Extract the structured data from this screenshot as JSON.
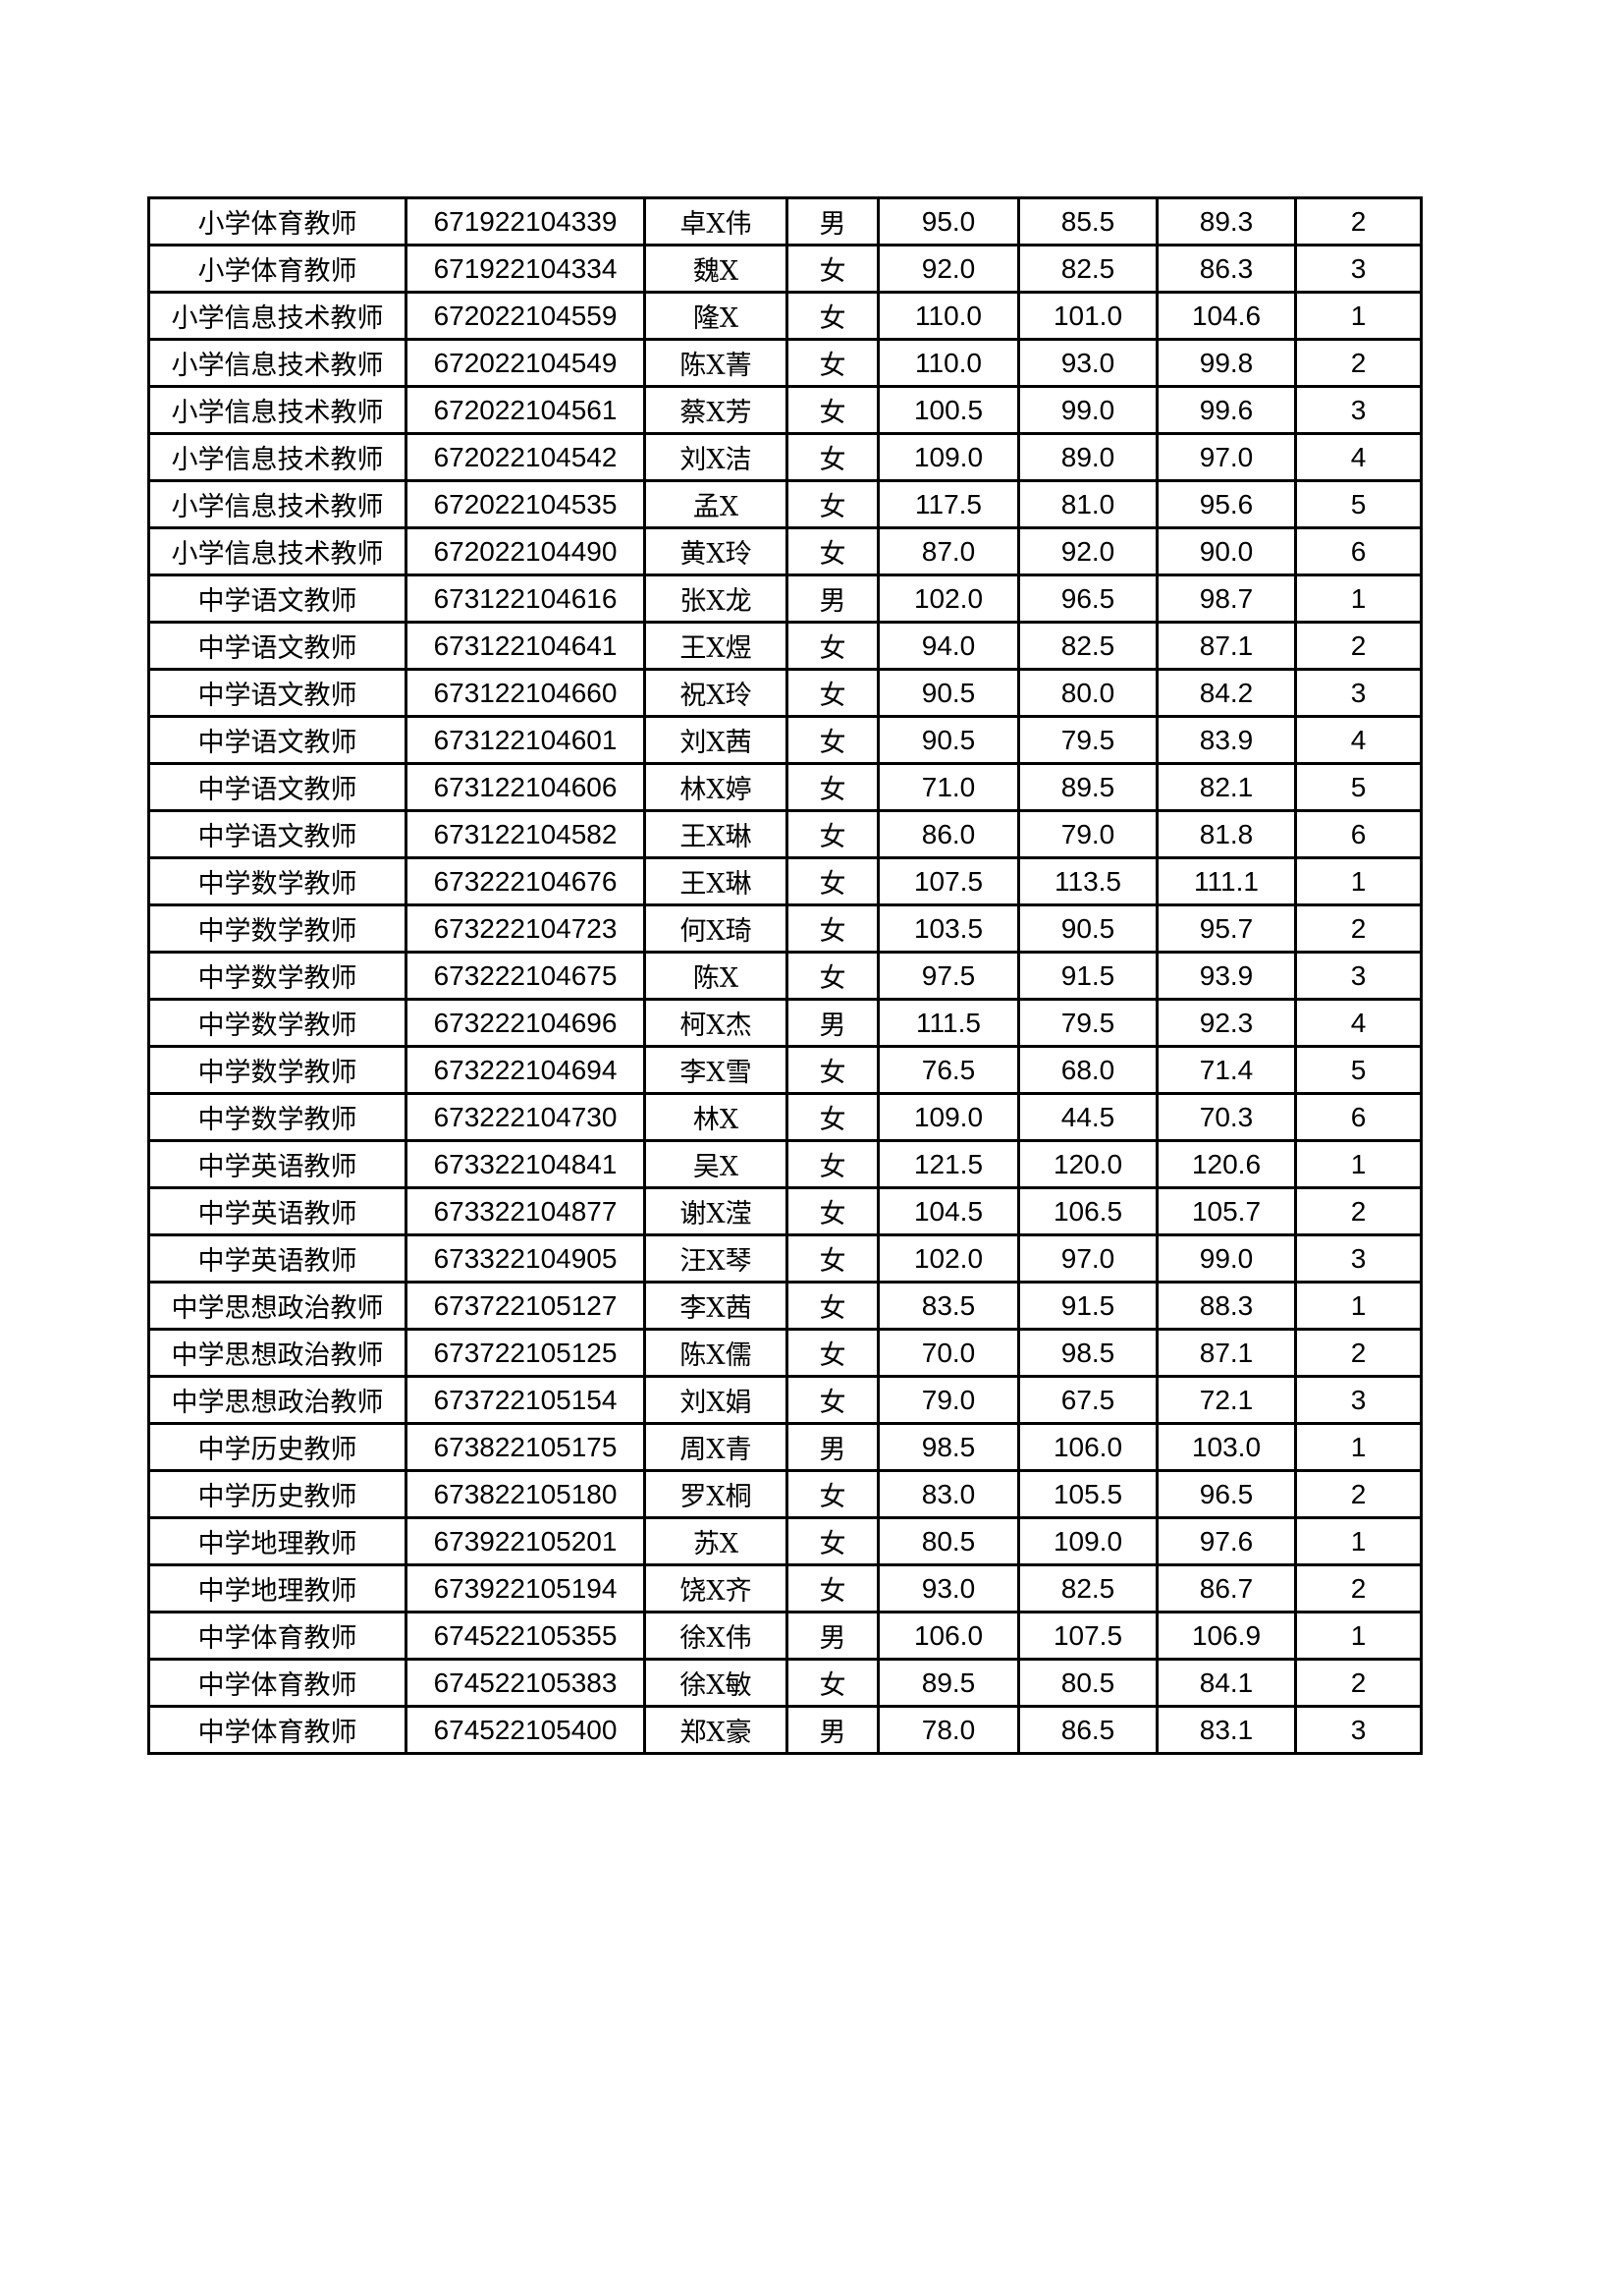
{
  "rows": [
    [
      "小学体育教师",
      "671922104339",
      "卓X伟",
      "男",
      "95.0",
      "85.5",
      "89.3",
      "2"
    ],
    [
      "小学体育教师",
      "671922104334",
      "魏X",
      "女",
      "92.0",
      "82.5",
      "86.3",
      "3"
    ],
    [
      "小学信息技术教师",
      "672022104559",
      "隆X",
      "女",
      "110.0",
      "101.0",
      "104.6",
      "1"
    ],
    [
      "小学信息技术教师",
      "672022104549",
      "陈X菁",
      "女",
      "110.0",
      "93.0",
      "99.8",
      "2"
    ],
    [
      "小学信息技术教师",
      "672022104561",
      "蔡X芳",
      "女",
      "100.5",
      "99.0",
      "99.6",
      "3"
    ],
    [
      "小学信息技术教师",
      "672022104542",
      "刘X洁",
      "女",
      "109.0",
      "89.0",
      "97.0",
      "4"
    ],
    [
      "小学信息技术教师",
      "672022104535",
      "孟X",
      "女",
      "117.5",
      "81.0",
      "95.6",
      "5"
    ],
    [
      "小学信息技术教师",
      "672022104490",
      "黄X玲",
      "女",
      "87.0",
      "92.0",
      "90.0",
      "6"
    ],
    [
      "中学语文教师",
      "673122104616",
      "张X龙",
      "男",
      "102.0",
      "96.5",
      "98.7",
      "1"
    ],
    [
      "中学语文教师",
      "673122104641",
      "王X煜",
      "女",
      "94.0",
      "82.5",
      "87.1",
      "2"
    ],
    [
      "中学语文教师",
      "673122104660",
      "祝X玲",
      "女",
      "90.5",
      "80.0",
      "84.2",
      "3"
    ],
    [
      "中学语文教师",
      "673122104601",
      "刘X茜",
      "女",
      "90.5",
      "79.5",
      "83.9",
      "4"
    ],
    [
      "中学语文教师",
      "673122104606",
      "林X婷",
      "女",
      "71.0",
      "89.5",
      "82.1",
      "5"
    ],
    [
      "中学语文教师",
      "673122104582",
      "王X琳",
      "女",
      "86.0",
      "79.0",
      "81.8",
      "6"
    ],
    [
      "中学数学教师",
      "673222104676",
      "王X琳",
      "女",
      "107.5",
      "113.5",
      "111.1",
      "1"
    ],
    [
      "中学数学教师",
      "673222104723",
      "何X琦",
      "女",
      "103.5",
      "90.5",
      "95.7",
      "2"
    ],
    [
      "中学数学教师",
      "673222104675",
      "陈X",
      "女",
      "97.5",
      "91.5",
      "93.9",
      "3"
    ],
    [
      "中学数学教师",
      "673222104696",
      "柯X杰",
      "男",
      "111.5",
      "79.5",
      "92.3",
      "4"
    ],
    [
      "中学数学教师",
      "673222104694",
      "李X雪",
      "女",
      "76.5",
      "68.0",
      "71.4",
      "5"
    ],
    [
      "中学数学教师",
      "673222104730",
      "林X",
      "女",
      "109.0",
      "44.5",
      "70.3",
      "6"
    ],
    [
      "中学英语教师",
      "673322104841",
      "吴X",
      "女",
      "121.5",
      "120.0",
      "120.6",
      "1"
    ],
    [
      "中学英语教师",
      "673322104877",
      "谢X滢",
      "女",
      "104.5",
      "106.5",
      "105.7",
      "2"
    ],
    [
      "中学英语教师",
      "673322104905",
      "汪X琴",
      "女",
      "102.0",
      "97.0",
      "99.0",
      "3"
    ],
    [
      "中学思想政治教师",
      "673722105127",
      "李X茜",
      "女",
      "83.5",
      "91.5",
      "88.3",
      "1"
    ],
    [
      "中学思想政治教师",
      "673722105125",
      "陈X儒",
      "女",
      "70.0",
      "98.5",
      "87.1",
      "2"
    ],
    [
      "中学思想政治教师",
      "673722105154",
      "刘X娟",
      "女",
      "79.0",
      "67.5",
      "72.1",
      "3"
    ],
    [
      "中学历史教师",
      "673822105175",
      "周X青",
      "男",
      "98.5",
      "106.0",
      "103.0",
      "1"
    ],
    [
      "中学历史教师",
      "673822105180",
      "罗X桐",
      "女",
      "83.0",
      "105.5",
      "96.5",
      "2"
    ],
    [
      "中学地理教师",
      "673922105201",
      "苏X",
      "女",
      "80.5",
      "109.0",
      "97.6",
      "1"
    ],
    [
      "中学地理教师",
      "673922105194",
      "饶X齐",
      "女",
      "93.0",
      "82.5",
      "86.7",
      "2"
    ],
    [
      "中学体育教师",
      "674522105355",
      "徐X伟",
      "男",
      "106.0",
      "107.5",
      "106.9",
      "1"
    ],
    [
      "中学体育教师",
      "674522105383",
      "徐X敏",
      "女",
      "89.5",
      "80.5",
      "84.1",
      "2"
    ],
    [
      "中学体育教师",
      "674522105400",
      "郑X豪",
      "男",
      "78.0",
      "86.5",
      "83.1",
      "3"
    ]
  ]
}
